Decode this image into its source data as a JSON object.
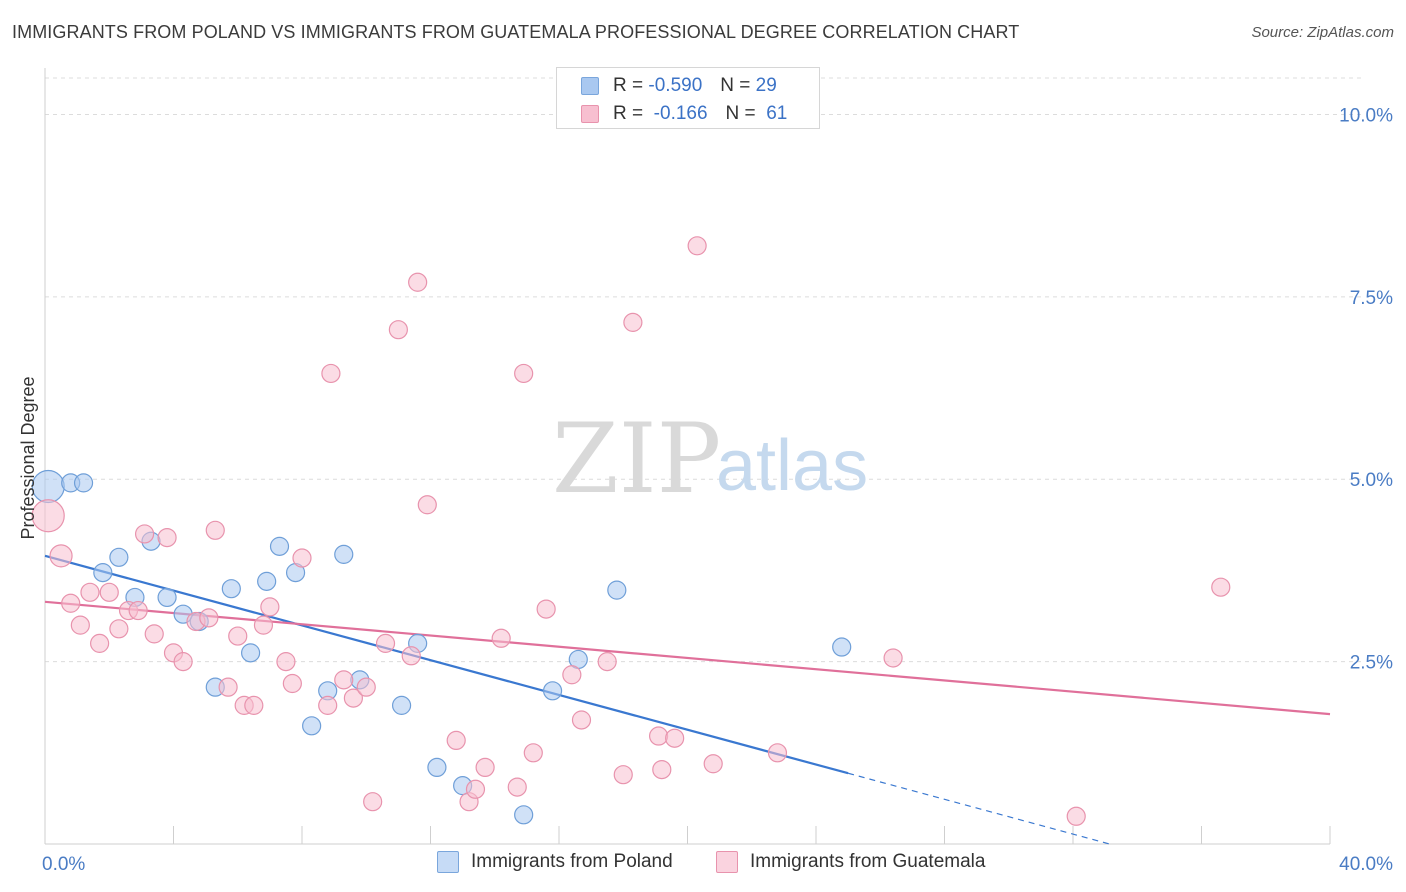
{
  "title": "IMMIGRANTS FROM POLAND VS IMMIGRANTS FROM GUATEMALA PROFESSIONAL DEGREE CORRELATION CHART",
  "source": "Source: ZipAtlas.com",
  "watermark": {
    "zip": "ZIP",
    "atlas": "atlas"
  },
  "legend": {
    "rows": [
      {
        "r_label": "R =",
        "r_value": "-0.590",
        "n_label": "N =",
        "n_value": "29",
        "color": "#a9c8f0",
        "stroke": "#7aa6dc"
      },
      {
        "r_label": "R =",
        "r_value": "-0.166",
        "n_label": "N =",
        "n_value": "61",
        "color": "#f7bfd0",
        "stroke": "#e893ad"
      }
    ]
  },
  "bottom_legend": [
    {
      "label": "Immigrants from Poland",
      "color": "#c6dbf6",
      "stroke": "#7aa6dc"
    },
    {
      "label": "Immigrants from Guatemala",
      "color": "#fad3df",
      "stroke": "#e893ad"
    }
  ],
  "chart_data": {
    "type": "scatter",
    "xlabel": "",
    "ylabel": "Professional Degree",
    "xlim": [
      0,
      40
    ],
    "ylim": [
      0,
      10.5
    ],
    "x_ticks_labels": [
      "0.0%",
      "40.0%"
    ],
    "y_ticks": [
      2.5,
      5.0,
      7.5,
      10.0
    ],
    "y_ticks_labels": [
      "2.5%",
      "5.0%",
      "7.5%",
      "10.0%"
    ],
    "grid": true,
    "series": [
      {
        "name": "Immigrants from Poland",
        "color": "#a9c8f0",
        "stroke": "#6f9fd8",
        "line_color": "#3a78d0",
        "trend": {
          "x0": 0,
          "y0": 3.95,
          "x1": 25,
          "y1": 0.97,
          "dash_to_x": 33.2
        },
        "points": [
          {
            "x": 0.1,
            "y": 4.9,
            "r": 16
          },
          {
            "x": 0.8,
            "y": 4.95
          },
          {
            "x": 1.2,
            "y": 4.95
          },
          {
            "x": 1.8,
            "y": 3.72
          },
          {
            "x": 2.3,
            "y": 3.93
          },
          {
            "x": 2.8,
            "y": 3.38
          },
          {
            "x": 3.3,
            "y": 4.15
          },
          {
            "x": 3.8,
            "y": 3.38
          },
          {
            "x": 4.3,
            "y": 3.15
          },
          {
            "x": 4.8,
            "y": 3.05
          },
          {
            "x": 5.3,
            "y": 2.15
          },
          {
            "x": 5.8,
            "y": 3.5
          },
          {
            "x": 6.4,
            "y": 2.62
          },
          {
            "x": 6.9,
            "y": 3.6
          },
          {
            "x": 7.3,
            "y": 4.08
          },
          {
            "x": 7.8,
            "y": 3.72
          },
          {
            "x": 8.3,
            "y": 1.62
          },
          {
            "x": 8.8,
            "y": 2.1
          },
          {
            "x": 9.3,
            "y": 3.97
          },
          {
            "x": 9.8,
            "y": 2.25
          },
          {
            "x": 11.1,
            "y": 1.9
          },
          {
            "x": 11.6,
            "y": 2.75
          },
          {
            "x": 12.2,
            "y": 1.05
          },
          {
            "x": 13.0,
            "y": 0.8
          },
          {
            "x": 14.9,
            "y": 0.4
          },
          {
            "x": 15.8,
            "y": 2.1
          },
          {
            "x": 16.6,
            "y": 2.53
          },
          {
            "x": 17.8,
            "y": 3.48
          },
          {
            "x": 24.8,
            "y": 2.7
          }
        ]
      },
      {
        "name": "Immigrants from Guatemala",
        "color": "#f7bfd0",
        "stroke": "#e893ad",
        "line_color": "#e0709a",
        "trend": {
          "x0": 0,
          "y0": 3.32,
          "x1": 40,
          "y1": 1.78
        },
        "points": [
          {
            "x": 0.1,
            "y": 4.5,
            "r": 16
          },
          {
            "x": 0.5,
            "y": 3.95,
            "r": 11
          },
          {
            "x": 0.8,
            "y": 3.3
          },
          {
            "x": 1.1,
            "y": 3.0
          },
          {
            "x": 1.4,
            "y": 3.45
          },
          {
            "x": 1.7,
            "y": 2.75
          },
          {
            "x": 2.0,
            "y": 3.45
          },
          {
            "x": 2.3,
            "y": 2.95
          },
          {
            "x": 2.6,
            "y": 3.2
          },
          {
            "x": 2.9,
            "y": 3.2
          },
          {
            "x": 3.1,
            "y": 4.25
          },
          {
            "x": 3.4,
            "y": 2.88
          },
          {
            "x": 3.8,
            "y": 4.2
          },
          {
            "x": 4.0,
            "y": 2.62
          },
          {
            "x": 4.3,
            "y": 2.5
          },
          {
            "x": 4.7,
            "y": 3.05
          },
          {
            "x": 5.1,
            "y": 3.1
          },
          {
            "x": 5.3,
            "y": 4.3
          },
          {
            "x": 5.7,
            "y": 2.15
          },
          {
            "x": 6.0,
            "y": 2.85
          },
          {
            "x": 6.2,
            "y": 1.9
          },
          {
            "x": 6.5,
            "y": 1.9
          },
          {
            "x": 6.8,
            "y": 3.0
          },
          {
            "x": 7.0,
            "y": 3.25
          },
          {
            "x": 7.5,
            "y": 2.5
          },
          {
            "x": 7.7,
            "y": 2.2
          },
          {
            "x": 8.0,
            "y": 3.92
          },
          {
            "x": 8.8,
            "y": 1.9
          },
          {
            "x": 8.9,
            "y": 6.45
          },
          {
            "x": 9.3,
            "y": 2.25
          },
          {
            "x": 9.6,
            "y": 2.0
          },
          {
            "x": 10.0,
            "y": 2.15
          },
          {
            "x": 10.2,
            "y": 0.58
          },
          {
            "x": 10.6,
            "y": 2.75
          },
          {
            "x": 11.0,
            "y": 7.05
          },
          {
            "x": 11.4,
            "y": 2.58
          },
          {
            "x": 11.6,
            "y": 7.7
          },
          {
            "x": 11.9,
            "y": 4.65
          },
          {
            "x": 12.8,
            "y": 1.42
          },
          {
            "x": 13.2,
            "y": 0.58
          },
          {
            "x": 13.4,
            "y": 0.75
          },
          {
            "x": 13.7,
            "y": 1.05
          },
          {
            "x": 14.2,
            "y": 2.82
          },
          {
            "x": 14.7,
            "y": 0.78
          },
          {
            "x": 14.9,
            "y": 6.45
          },
          {
            "x": 15.2,
            "y": 1.25
          },
          {
            "x": 15.6,
            "y": 3.22
          },
          {
            "x": 16.4,
            "y": 2.32
          },
          {
            "x": 16.7,
            "y": 1.7
          },
          {
            "x": 17.5,
            "y": 2.5
          },
          {
            "x": 18.0,
            "y": 0.95
          },
          {
            "x": 18.3,
            "y": 7.15
          },
          {
            "x": 19.1,
            "y": 1.48
          },
          {
            "x": 19.6,
            "y": 1.45
          },
          {
            "x": 20.3,
            "y": 8.2
          },
          {
            "x": 20.8,
            "y": 1.1
          },
          {
            "x": 19.2,
            "y": 1.02
          },
          {
            "x": 22.8,
            "y": 1.25
          },
          {
            "x": 26.4,
            "y": 2.55
          },
          {
            "x": 32.1,
            "y": 0.38
          },
          {
            "x": 36.6,
            "y": 3.52
          }
        ]
      }
    ]
  }
}
